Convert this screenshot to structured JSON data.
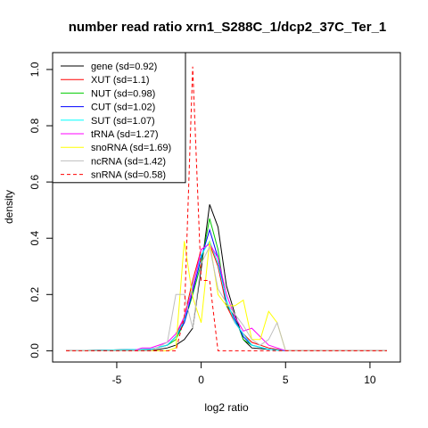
{
  "chart_data": {
    "type": "line",
    "title": "number read ratio xrn1_S288C_1/dcp2_37C_Ter_1",
    "xlabel": "log2 ratio",
    "ylabel": "density",
    "xlim": [
      -8.8,
      11.8
    ],
    "ylim": [
      -0.04,
      1.06
    ],
    "xticks": [
      -5,
      0,
      5,
      10
    ],
    "yticks": [
      0.0,
      0.2,
      0.4,
      0.6,
      0.8,
      1.0
    ],
    "grid": false,
    "legend_position": "top-left",
    "series": [
      {
        "name": "gene (sd=0.92)",
        "color": "#000000",
        "dash": false,
        "x": [
          -8,
          -3,
          -2,
          -1.5,
          -1,
          -0.5,
          0,
          0.5,
          1,
          1.5,
          2,
          2.5,
          3,
          4,
          5,
          11
        ],
        "y": [
          0,
          0,
          0.01,
          0.02,
          0.04,
          0.08,
          0.29,
          0.52,
          0.44,
          0.23,
          0.13,
          0.04,
          0.01,
          0.005,
          0,
          0
        ]
      },
      {
        "name": "XUT (sd=1.1)",
        "color": "#ff0000",
        "dash": false,
        "x": [
          -8,
          -3,
          -2,
          -1.5,
          -1,
          -0.5,
          0,
          0.5,
          1,
          1.5,
          2,
          2.5,
          3,
          4,
          5,
          11
        ],
        "y": [
          0,
          0.005,
          0.02,
          0.05,
          0.12,
          0.25,
          0.36,
          0.38,
          0.3,
          0.16,
          0.1,
          0.06,
          0.03,
          0.01,
          0,
          0
        ]
      },
      {
        "name": "NUT (sd=0.98)",
        "color": "#00cc00",
        "dash": false,
        "x": [
          -8,
          -3,
          -2,
          -1.5,
          -1,
          -0.5,
          0,
          0.5,
          1,
          1.5,
          2,
          2.5,
          3,
          4,
          5,
          11
        ],
        "y": [
          0,
          0.005,
          0.02,
          0.04,
          0.1,
          0.2,
          0.31,
          0.47,
          0.36,
          0.16,
          0.12,
          0.04,
          0.02,
          0.005,
          0,
          0
        ]
      },
      {
        "name": "CUT (sd=1.02)",
        "color": "#0000ff",
        "dash": false,
        "x": [
          -8,
          -3,
          -2,
          -1.5,
          -1,
          -0.5,
          0,
          0.5,
          1,
          1.5,
          2,
          2.5,
          3,
          4,
          5,
          11
        ],
        "y": [
          0,
          0.005,
          0.02,
          0.05,
          0.1,
          0.21,
          0.33,
          0.43,
          0.33,
          0.17,
          0.11,
          0.05,
          0.02,
          0.005,
          0,
          0
        ]
      },
      {
        "name": "SUT (sd=1.07)",
        "color": "#00ffff",
        "dash": false,
        "x": [
          -8,
          -3,
          -2,
          -1.5,
          -1,
          -0.5,
          0,
          0.5,
          1,
          1.5,
          2,
          2.5,
          3,
          4,
          5,
          11
        ],
        "y": [
          0,
          0.005,
          0.02,
          0.05,
          0.11,
          0.23,
          0.34,
          0.39,
          0.31,
          0.18,
          0.1,
          0.06,
          0.02,
          0.005,
          0,
          0
        ]
      },
      {
        "name": "tRNA (sd=1.27)",
        "color": "#ff00ff",
        "dash": false,
        "x": [
          -8,
          -4,
          -3.5,
          -3,
          -2,
          -1.5,
          -1,
          -0.5,
          0,
          0.5,
          1,
          1.5,
          2,
          2.5,
          3,
          4,
          4.5,
          5,
          11
        ],
        "y": [
          0,
          0,
          0.01,
          0.01,
          0.03,
          0.06,
          0.12,
          0.22,
          0.36,
          0.38,
          0.33,
          0.2,
          0.12,
          0.07,
          0.08,
          0.02,
          0.01,
          0,
          0
        ]
      },
      {
        "name": "snoRNA (sd=1.69)",
        "color": "#ffff00",
        "dash": false,
        "x": [
          -8,
          -2,
          -1.5,
          -1,
          -0.5,
          0,
          0.5,
          1,
          1.5,
          2,
          2.5,
          3,
          3.5,
          4,
          4.5,
          5,
          11
        ],
        "y": [
          0,
          0,
          0.01,
          0.39,
          0.19,
          0.1,
          0.39,
          0.2,
          0.16,
          0.16,
          0.18,
          0.04,
          0.04,
          0.14,
          0.1,
          0,
          0
        ]
      },
      {
        "name": "ncRNA (sd=1.42)",
        "color": "#bebebe",
        "dash": false,
        "x": [
          -8,
          -3,
          -2,
          -1.5,
          -1,
          -0.5,
          0,
          0.5,
          1,
          1.5,
          2,
          2.5,
          3,
          3.5,
          4,
          4.5,
          5,
          11
        ],
        "y": [
          0,
          0,
          0.03,
          0.2,
          0.2,
          0.08,
          0.31,
          0.37,
          0.22,
          0.17,
          0.13,
          0.09,
          0.04,
          0.02,
          0.04,
          0.1,
          0,
          0
        ]
      },
      {
        "name": "snRNA (sd=0.58)",
        "color": "#ff0000",
        "dash": true,
        "x": [
          -8,
          -1.5,
          -1,
          -0.5,
          0,
          0.5,
          1,
          1.5,
          11
        ],
        "y": [
          0,
          0,
          0.12,
          1.01,
          0.25,
          0.25,
          0,
          0,
          0
        ]
      }
    ]
  }
}
